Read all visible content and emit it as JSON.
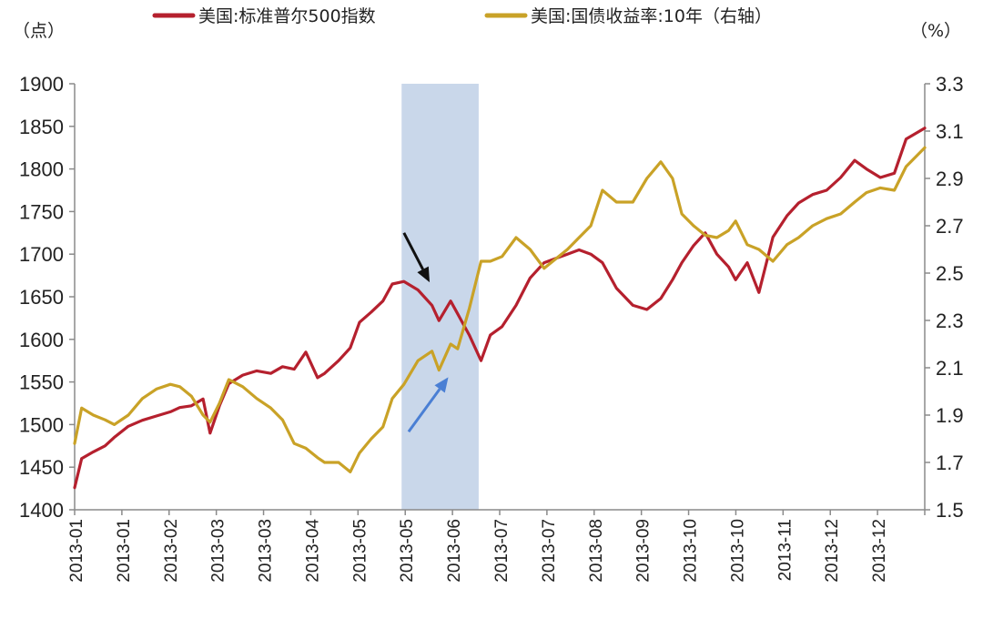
{
  "chart_data": {
    "type": "line",
    "units": {
      "left": "（点）",
      "right": "（%）"
    },
    "legend": {
      "placement": "top",
      "items": [
        {
          "label": "美国:标准普尔500指数",
          "color": "#b5202e"
        },
        {
          "label": "美国:国债收益率:10年（右轴）",
          "color": "#c9a227"
        }
      ]
    },
    "x_tick_labels": [
      "2013-01",
      "2013-01",
      "2013-02",
      "2013-03",
      "2013-03",
      "2013-04",
      "2013-05",
      "2013-05",
      "2013-06",
      "2013-07",
      "2013-07",
      "2013-08",
      "2013-09",
      "2013-10",
      "2013-10",
      "2013-11",
      "2013-12",
      "2013-12"
    ],
    "x_range": [
      "2013-01-01",
      "2013-12-31"
    ],
    "y_left": {
      "range": [
        1400,
        1900
      ],
      "ticks": [
        1400,
        1450,
        1500,
        1550,
        1600,
        1650,
        1700,
        1750,
        1800,
        1850,
        1900
      ],
      "tick_labels": [
        "1400",
        "1450",
        "1500",
        "1550",
        "1600",
        "1650",
        "1700",
        "1750",
        "1800",
        "1850",
        "1900"
      ]
    },
    "y_right": {
      "range": [
        1.5,
        3.3
      ],
      "ticks": [
        1.5,
        1.7,
        1.9,
        2.1,
        2.3,
        2.5,
        2.7,
        2.9,
        3.1,
        3.3
      ],
      "tick_labels": [
        "1.5",
        "1.7",
        "1.9",
        "2.1",
        "2.3",
        "2.5",
        "2.7",
        "2.9",
        "3.1",
        "3.3"
      ]
    },
    "shaded_region": {
      "start": "2013-05-21",
      "end": "2013-06-23",
      "color": "#c9d7ea"
    },
    "annotations": [
      {
        "type": "arrow",
        "color": "#111111",
        "from": [
          "2013-05-22",
          1725
        ],
        "to": [
          "2013-06-02",
          1667
        ]
      },
      {
        "type": "arrow",
        "color": "#4a7fd4",
        "from": [
          "2013-05-24",
          1.83
        ],
        "to": [
          "2013-06-10",
          2.06
        ]
      }
    ],
    "grid": false,
    "series": [
      {
        "name": "美国:标准普尔500指数",
        "axis": "left",
        "color": "#b5202e",
        "x": [
          "2013-01-01",
          "2013-01-04",
          "2013-01-09",
          "2013-01-14",
          "2013-01-18",
          "2013-01-24",
          "2013-01-30",
          "2013-02-05",
          "2013-02-11",
          "2013-02-15",
          "2013-02-20",
          "2013-02-25",
          "2013-02-28",
          "2013-03-04",
          "2013-03-08",
          "2013-03-14",
          "2013-03-20",
          "2013-03-26",
          "2013-03-31",
          "2013-04-05",
          "2013-04-10",
          "2013-04-15",
          "2013-04-18",
          "2013-04-24",
          "2013-04-29",
          "2013-05-03",
          "2013-05-08",
          "2013-05-13",
          "2013-05-17",
          "2013-05-22",
          "2013-05-28",
          "2013-06-03",
          "2013-06-06",
          "2013-06-11",
          "2013-06-14",
          "2013-06-19",
          "2013-06-24",
          "2013-06-28",
          "2013-07-03",
          "2013-07-09",
          "2013-07-15",
          "2013-07-21",
          "2013-07-26",
          "2013-07-31",
          "2013-08-05",
          "2013-08-10",
          "2013-08-15",
          "2013-08-21",
          "2013-08-28",
          "2013-09-03",
          "2013-09-09",
          "2013-09-14",
          "2013-09-18",
          "2013-09-23",
          "2013-09-28",
          "2013-10-03",
          "2013-10-08",
          "2013-10-11",
          "2013-10-16",
          "2013-10-21",
          "2013-10-27",
          "2013-11-02",
          "2013-11-07",
          "2013-11-13",
          "2013-11-19",
          "2013-11-25",
          "2013-12-01",
          "2013-12-06",
          "2013-12-12",
          "2013-12-18",
          "2013-12-23",
          "2013-12-31"
        ],
        "values": [
          1426,
          1460,
          1468,
          1475,
          1485,
          1498,
          1505,
          1510,
          1515,
          1520,
          1522,
          1530,
          1490,
          1522,
          1548,
          1558,
          1563,
          1560,
          1568,
          1565,
          1585,
          1555,
          1560,
          1575,
          1590,
          1620,
          1632,
          1645,
          1665,
          1668,
          1658,
          1640,
          1622,
          1645,
          1630,
          1605,
          1575,
          1605,
          1615,
          1640,
          1672,
          1690,
          1695,
          1700,
          1705,
          1700,
          1690,
          1660,
          1640,
          1635,
          1648,
          1670,
          1690,
          1710,
          1725,
          1700,
          1685,
          1670,
          1690,
          1655,
          1720,
          1745,
          1760,
          1770,
          1775,
          1790,
          1810,
          1800,
          1790,
          1795,
          1835,
          1848
        ]
      },
      {
        "name": "美国:国债收益率:10年（右轴）",
        "axis": "right",
        "color": "#c9a227",
        "x": [
          "2013-01-01",
          "2013-01-04",
          "2013-01-09",
          "2013-01-14",
          "2013-01-18",
          "2013-01-24",
          "2013-01-30",
          "2013-02-05",
          "2013-02-11",
          "2013-02-15",
          "2013-02-20",
          "2013-02-25",
          "2013-02-28",
          "2013-03-04",
          "2013-03-08",
          "2013-03-14",
          "2013-03-20",
          "2013-03-26",
          "2013-03-31",
          "2013-04-05",
          "2013-04-10",
          "2013-04-15",
          "2013-04-18",
          "2013-04-24",
          "2013-04-29",
          "2013-05-03",
          "2013-05-08",
          "2013-05-13",
          "2013-05-17",
          "2013-05-22",
          "2013-05-28",
          "2013-06-03",
          "2013-06-06",
          "2013-06-11",
          "2013-06-14",
          "2013-06-19",
          "2013-06-24",
          "2013-06-28",
          "2013-07-03",
          "2013-07-09",
          "2013-07-15",
          "2013-07-21",
          "2013-07-26",
          "2013-07-31",
          "2013-08-05",
          "2013-08-10",
          "2013-08-15",
          "2013-08-21",
          "2013-08-28",
          "2013-09-03",
          "2013-09-09",
          "2013-09-14",
          "2013-09-18",
          "2013-09-23",
          "2013-09-28",
          "2013-10-03",
          "2013-10-08",
          "2013-10-11",
          "2013-10-16",
          "2013-10-21",
          "2013-10-27",
          "2013-11-02",
          "2013-11-07",
          "2013-11-13",
          "2013-11-19",
          "2013-11-25",
          "2013-12-01",
          "2013-12-06",
          "2013-12-12",
          "2013-12-18",
          "2013-12-23",
          "2013-12-31"
        ],
        "values": [
          1.78,
          1.93,
          1.9,
          1.88,
          1.86,
          1.9,
          1.97,
          2.01,
          2.03,
          2.02,
          1.98,
          1.9,
          1.87,
          1.95,
          2.05,
          2.02,
          1.97,
          1.93,
          1.88,
          1.78,
          1.76,
          1.72,
          1.7,
          1.7,
          1.66,
          1.74,
          1.8,
          1.85,
          1.97,
          2.03,
          2.13,
          2.17,
          2.09,
          2.2,
          2.18,
          2.35,
          2.55,
          2.55,
          2.57,
          2.65,
          2.6,
          2.52,
          2.56,
          2.6,
          2.65,
          2.7,
          2.85,
          2.8,
          2.8,
          2.9,
          2.97,
          2.9,
          2.75,
          2.7,
          2.66,
          2.65,
          2.68,
          2.72,
          2.62,
          2.6,
          2.55,
          2.62,
          2.65,
          2.7,
          2.73,
          2.75,
          2.8,
          2.84,
          2.86,
          2.85,
          2.95,
          3.03
        ]
      }
    ]
  }
}
